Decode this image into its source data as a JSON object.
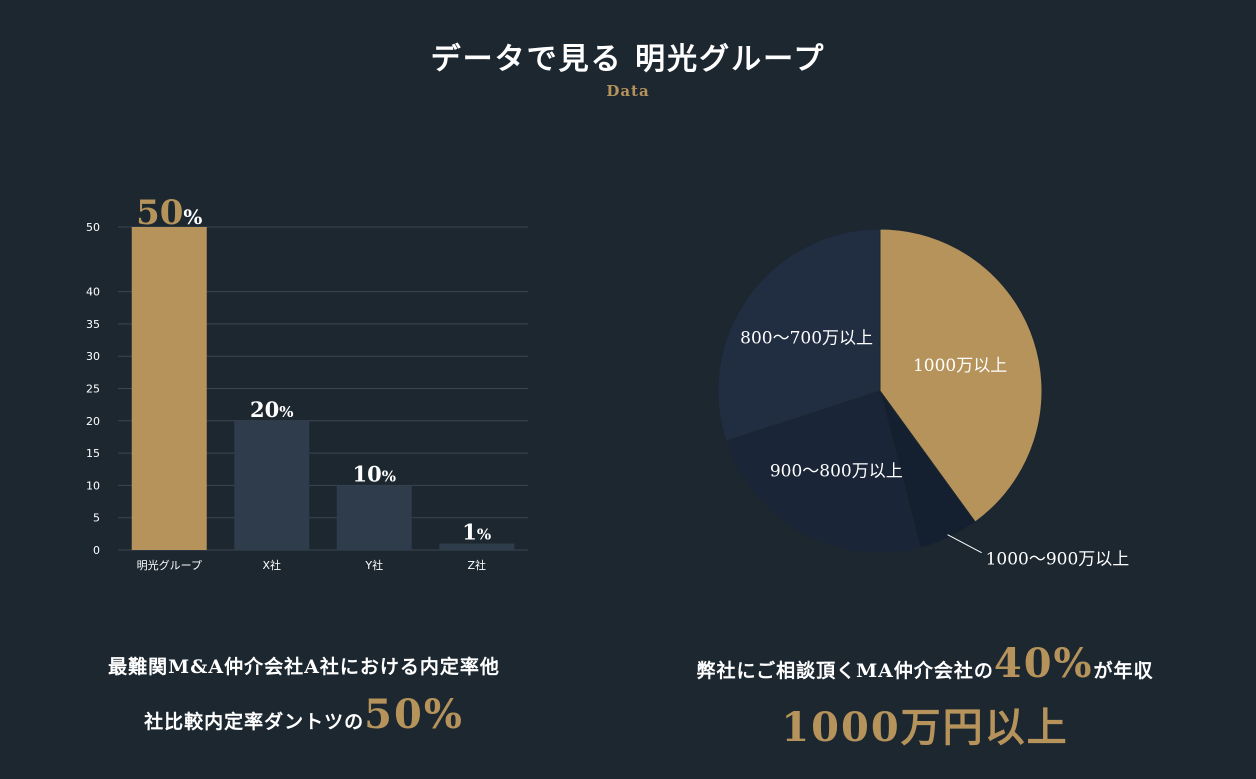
{
  "header": {
    "title": "データで見る 明光グループ",
    "subtitle": "Data"
  },
  "chart_data": [
    {
      "type": "bar",
      "categories": [
        "明光グループ",
        "X社",
        "Y社",
        "Z社"
      ],
      "values": [
        50,
        20,
        10,
        1
      ],
      "data_labels": [
        "50",
        "20",
        "10",
        "1"
      ],
      "data_label_unit": "%",
      "yticks": [
        0,
        5,
        10,
        15,
        20,
        25,
        30,
        35,
        40,
        50
      ],
      "ylim": [
        0,
        50
      ],
      "grid": true,
      "colors": [
        "#b5935b",
        "#2f3c4c",
        "#2f3c4c",
        "#2f3c4c"
      ]
    },
    {
      "type": "pie",
      "slices": [
        {
          "label": "1000万以上",
          "value": 40,
          "color": "#b5935b",
          "label_inside": true
        },
        {
          "label": "1000〜900万以上",
          "value": 6,
          "color": "#14202f",
          "label_inside": false
        },
        {
          "label": "900〜800万以上",
          "value": 24,
          "color": "#1a2538",
          "label_inside": false
        },
        {
          "label": "800〜700万以上",
          "value": 30,
          "color": "#212e42",
          "label_inside": false
        }
      ],
      "legend": "none"
    }
  ],
  "captions": {
    "left": {
      "line1": "最難関M&A仲介会社A社における内定率他",
      "line2_prefix": "社比較内定率ダントツの",
      "line2_accent": "50%"
    },
    "right": {
      "line1_prefix": "弊社にご相談頂くMA仲介会社の",
      "line1_accent": "40%",
      "line1_suffix": "が年収",
      "line2": "1000万円以上"
    }
  },
  "colors": {
    "background": "#1c2730",
    "accent": "#b5935b",
    "grid": "#3a4651",
    "axis_text": "#ffffff"
  }
}
